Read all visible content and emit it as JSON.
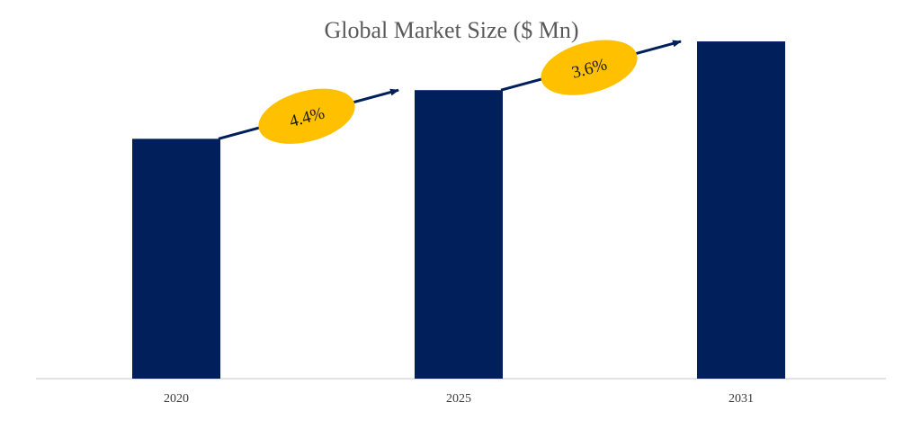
{
  "colors": {
    "bar": "#001F5B",
    "arrow": "#001F5B",
    "cagr_fill": "#FFC000",
    "axis": "#D0D0D0"
  },
  "chart_data": {
    "type": "bar",
    "title": "Global Market Size ($ Mn)",
    "xlabel": "",
    "ylabel": "",
    "categories": [
      "2020",
      "2025",
      "2031"
    ],
    "values": [
      0.665,
      0.8,
      0.935
    ],
    "value_note": "Relative bar heights only; no numeric values are printed on the chart",
    "ylim": [
      0,
      1
    ],
    "grid": false,
    "legend": "none",
    "annotations": [
      {
        "from": "2020",
        "to": "2025",
        "label": "4.4%"
      },
      {
        "from": "2025",
        "to": "2031",
        "label": "3.6%"
      }
    ]
  }
}
